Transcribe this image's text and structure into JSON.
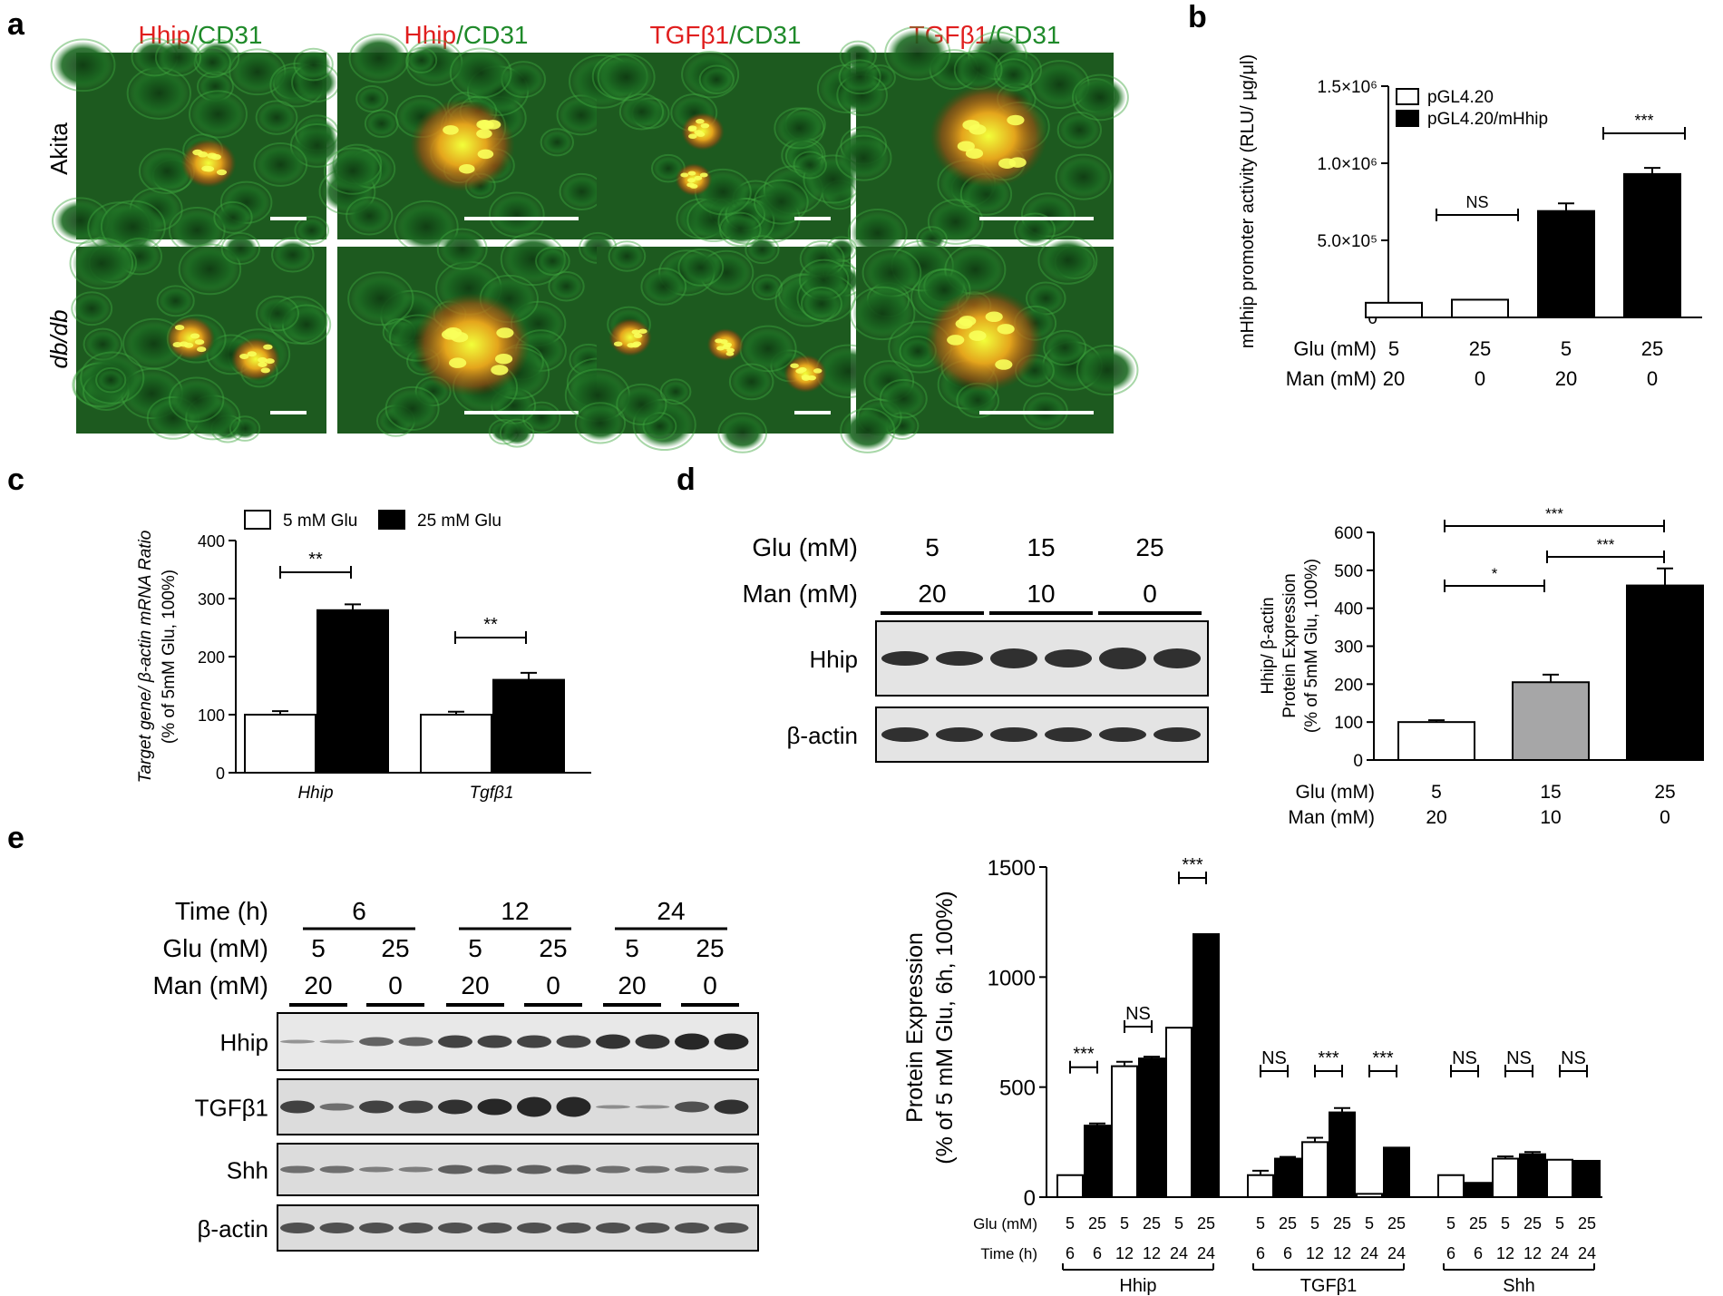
{
  "colors": {
    "red": "#e01e1e",
    "green": "#1f8a2a",
    "black": "#000000",
    "white": "#ffffff",
    "gray": "#a6a6a7"
  },
  "panel_a": {
    "letter": "a",
    "headers": [
      {
        "gene": "Hhip",
        "sep": "/",
        "marker": "CD31"
      },
      {
        "gene": "Hhip",
        "sep": "/",
        "marker": "CD31"
      },
      {
        "gene": "TGFβ1",
        "sep": "/",
        "marker": "CD31"
      },
      {
        "gene": "TGFβ1",
        "sep": "/",
        "marker": "CD31"
      }
    ],
    "rows": [
      "Akita",
      "db/db"
    ]
  },
  "panel_b": {
    "letter": "b"
  },
  "panel_c": {
    "letter": "c"
  },
  "panel_d": {
    "letter": "d",
    "blot": {
      "glu_label": "Glu (mM)",
      "man_label": "Man (mM)",
      "glu": [
        "5",
        "15",
        "25"
      ],
      "man": [
        "20",
        "10",
        "0"
      ],
      "bands": [
        "Hhip",
        "β-actin"
      ]
    }
  },
  "panel_e": {
    "letter": "e",
    "blot": {
      "time_label": "Time (h)",
      "glu_label": "Glu (mM)",
      "man_label": "Man (mM)",
      "times": [
        "6",
        "12",
        "24"
      ],
      "glu": [
        "5",
        "25",
        "5",
        "25",
        "5",
        "25"
      ],
      "man": [
        "20",
        "0",
        "20",
        "0",
        "20",
        "0"
      ],
      "bands": [
        "Hhip",
        "TGFβ1",
        "Shh",
        "β-actin"
      ]
    }
  },
  "chart_data": [
    {
      "panel": "b",
      "type": "bar",
      "ylabel": "mHhip promoter activity (RLU/ μg/μl)",
      "ylim": [
        0,
        1500000
      ],
      "yticks": [
        "0",
        "5.0×10⁵",
        "1.0×10⁶",
        "1.5×10⁶"
      ],
      "legend": [
        "pGL4.20",
        "pGL4.20/mHhip"
      ],
      "bars": [
        {
          "series": "pGL4.20",
          "glu": "5",
          "man": "20",
          "value": 95000,
          "err": 0
        },
        {
          "series": "pGL4.20",
          "glu": "25",
          "man": "0",
          "value": 115000,
          "err": 0
        },
        {
          "series": "pGL4.20/mHhip",
          "glu": "5",
          "man": "20",
          "value": 690000,
          "err": 50000
        },
        {
          "series": "pGL4.20/mHhip",
          "glu": "25",
          "man": "0",
          "value": 930000,
          "err": 40000
        }
      ],
      "row_labels": [
        "Glu (mM)",
        "Man (mM)"
      ],
      "significance": [
        {
          "from": 0,
          "to": 1,
          "label": "NS"
        },
        {
          "from": 2,
          "to": 3,
          "label": "***"
        }
      ]
    },
    {
      "panel": "c",
      "type": "bar",
      "ylabel_line1": "Target gene/ β-actin mRNA Ratio",
      "ylabel_line2": "(% of 5mM Glu, 100%)",
      "ylim": [
        0,
        400
      ],
      "yticks": [
        "0",
        "100",
        "200",
        "300",
        "400"
      ],
      "legend": [
        "5 mM Glu",
        "25 mM Glu"
      ],
      "categories": [
        "Hhip",
        "Tgfβ1"
      ],
      "series": [
        {
          "name": "5 mM Glu",
          "values": [
            100,
            100
          ],
          "err": [
            6,
            5
          ]
        },
        {
          "name": "25 mM Glu",
          "values": [
            280,
            160
          ],
          "err": [
            10,
            12
          ]
        }
      ],
      "significance": [
        {
          "category": 0,
          "label": "**"
        },
        {
          "category": 1,
          "label": "**"
        }
      ]
    },
    {
      "panel": "d",
      "type": "bar",
      "ylabel_line1": "Hhip/ β-actin",
      "ylabel_line2": "Protein Expression",
      "ylabel_line3": "(% of 5mM Glu, 100%)",
      "ylim": [
        0,
        600
      ],
      "yticks": [
        "0",
        "100",
        "200",
        "300",
        "400",
        "500",
        "600"
      ],
      "bars": [
        {
          "glu": "5",
          "man": "20",
          "value": 100,
          "err": 5
        },
        {
          "glu": "15",
          "man": "10",
          "value": 205,
          "err": 20
        },
        {
          "glu": "25",
          "man": "0",
          "value": 460,
          "err": 45
        }
      ],
      "row_labels": [
        "Glu (mM)",
        "Man (mM)"
      ],
      "significance": [
        {
          "from": 0,
          "to": 2,
          "label": "***"
        },
        {
          "from": 0,
          "to": 1,
          "label": "*"
        },
        {
          "from": 1,
          "to": 2,
          "label": "***"
        }
      ]
    },
    {
      "panel": "e",
      "type": "bar",
      "ylabel_line1": "Protein Expression",
      "ylabel_line2": "(% of 5 mM Glu, 6h, 100%)",
      "ylim": [
        0,
        1500
      ],
      "yticks": [
        "0",
        "500",
        "1000",
        "1500"
      ],
      "row_labels": [
        "Glu (mM)",
        "Time  (h)"
      ],
      "groups": [
        {
          "name": "Hhip",
          "glu": [
            "5",
            "25",
            "5",
            "25",
            "5",
            "25"
          ],
          "time": [
            "6",
            "6",
            "12",
            "12",
            "24",
            "24"
          ],
          "values": [
            100,
            325,
            595,
            630,
            770,
            1195
          ],
          "err": [
            0,
            10,
            20,
            8,
            0,
            0
          ],
          "sig": [
            "***",
            "NS",
            "***"
          ]
        },
        {
          "name": "TGFβ1",
          "glu": [
            "5",
            "25",
            "5",
            "25",
            "5",
            "25"
          ],
          "time": [
            "6",
            "6",
            "12",
            "12",
            "24",
            "24"
          ],
          "values": [
            100,
            175,
            250,
            385,
            15,
            225
          ],
          "err": [
            20,
            8,
            20,
            20,
            0,
            0
          ],
          "sig": [
            "NS",
            "***",
            "***"
          ]
        },
        {
          "name": "Shh",
          "glu": [
            "5",
            "25",
            "5",
            "25",
            "5",
            "25"
          ],
          "time": [
            "6",
            "6",
            "12",
            "12",
            "24",
            "24"
          ],
          "values": [
            100,
            65,
            175,
            195,
            170,
            165
          ],
          "err": [
            0,
            0,
            10,
            10,
            0,
            0
          ],
          "sig": [
            "NS",
            "NS",
            "NS"
          ]
        }
      ]
    }
  ]
}
